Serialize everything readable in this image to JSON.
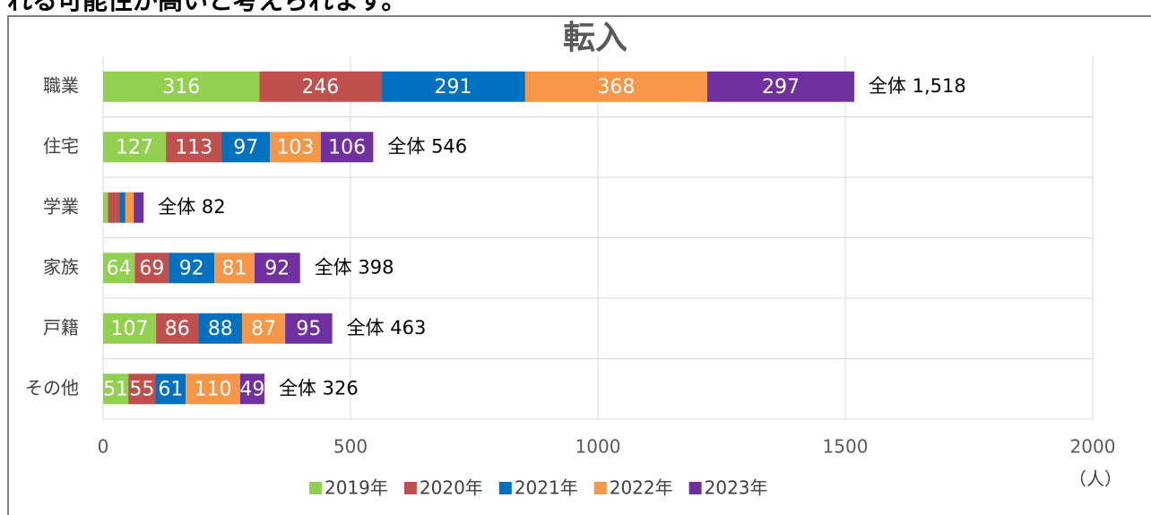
{
  "body_text": "れる可能性が高いと考えられます。",
  "chart_data": {
    "type": "stacked_barh",
    "title": "転入",
    "categories": [
      "職業",
      "住宅",
      "学業",
      "家族",
      "戸籍",
      "その他"
    ],
    "series": [
      {
        "name": "2019年",
        "color": "#92d050",
        "values": [
          316,
          127,
          10,
          64,
          107,
          51
        ]
      },
      {
        "name": "2020年",
        "color": "#c0504d",
        "values": [
          246,
          113,
          23,
          69,
          86,
          55
        ]
      },
      {
        "name": "2021年",
        "color": "#0070c0",
        "values": [
          291,
          97,
          12,
          92,
          88,
          61
        ]
      },
      {
        "name": "2022年",
        "color": "#f79646",
        "values": [
          368,
          103,
          17,
          81,
          87,
          110
        ]
      },
      {
        "name": "2023年",
        "color": "#7030a0",
        "values": [
          297,
          106,
          20,
          92,
          95,
          49
        ]
      }
    ],
    "totals": [
      1518,
      546,
      82,
      398,
      463,
      326
    ],
    "total_labels": [
      "全体 1,518",
      "全体 546",
      "全体 82",
      "全体 398",
      "全体 463",
      "全体 326"
    ],
    "xlim": [
      0,
      2000
    ],
    "xticks": [
      0,
      500,
      1000,
      1500,
      2000
    ],
    "x_axis_unit": "（人）",
    "grid": true,
    "legend": "bottom"
  }
}
